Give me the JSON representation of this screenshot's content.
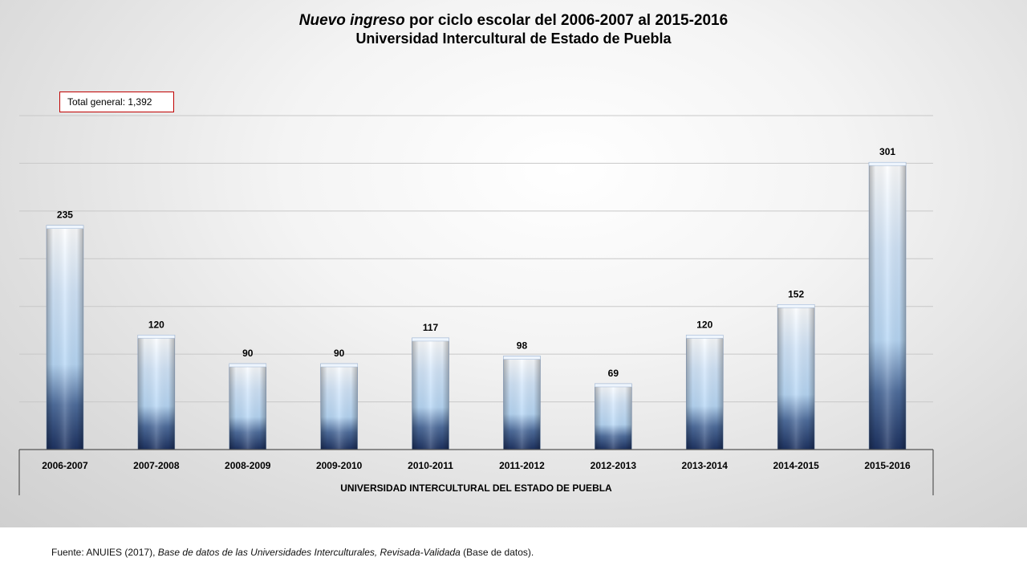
{
  "title": {
    "italic_part": "Nuevo ingreso",
    "rest_part": " por ciclo escolar del 2006-2007 al 2015-2016",
    "line2": "Universidad Intercultural de Estado de Puebla"
  },
  "total_box": "Total general: 1,392",
  "source": {
    "prefix": "Fuente: ANUIES (2017), ",
    "italic": "Base de datos de las Universidades Interculturales, Revisada-Validada",
    "suffix": " (Base de datos)."
  },
  "chart_data": {
    "type": "bar",
    "title": "Nuevo ingreso por ciclo escolar del 2006-2007 al 2015-2016 Universidad Intercultural de Estado de Puebla",
    "xlabel": "UNIVERSIDAD INTERCULTURAL DEL ESTADO DE PUEBLA",
    "ylabel": "",
    "categories": [
      "2006-2007",
      "2007-2008",
      "2008-2009",
      "2009-2010",
      "2010-2011",
      "2011-2012",
      "2012-2013",
      "2013-2014",
      "2014-2015",
      "2015-2016"
    ],
    "values": [
      235,
      120,
      90,
      90,
      117,
      98,
      69,
      120,
      152,
      301
    ],
    "ylim": [
      0,
      350
    ],
    "grid": true,
    "legend": "none"
  }
}
